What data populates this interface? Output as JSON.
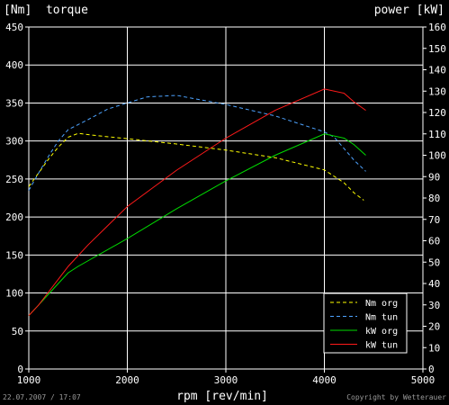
{
  "chart_data": {
    "type": "line",
    "left_axis_label": "[Nm]  torque",
    "right_axis_label": "power [kW]",
    "xlabel": "rpm [rev/min]",
    "xlim": [
      1000,
      5000
    ],
    "ylim_left": [
      0,
      450
    ],
    "ylim_right": [
      0,
      160
    ],
    "x_ticks": [
      1000,
      2000,
      3000,
      4000,
      5000
    ],
    "y_left_ticks": [
      0,
      50,
      100,
      150,
      200,
      250,
      300,
      350,
      400,
      450
    ],
    "y_right_ticks": [
      0,
      10,
      20,
      30,
      40,
      50,
      60,
      70,
      80,
      90,
      100,
      110,
      120,
      130,
      140,
      150,
      160
    ],
    "grid": true,
    "legend_position": "bottom-right",
    "series": [
      {
        "name": "Nm org",
        "axis": "left",
        "color": "#ffff00",
        "dashed": true,
        "points": [
          [
            1000,
            240
          ],
          [
            1100,
            258
          ],
          [
            1200,
            276
          ],
          [
            1300,
            292
          ],
          [
            1400,
            305
          ],
          [
            1500,
            310
          ],
          [
            1700,
            307
          ],
          [
            2000,
            303
          ],
          [
            2500,
            296
          ],
          [
            3000,
            288
          ],
          [
            3500,
            278
          ],
          [
            4000,
            262
          ],
          [
            4200,
            245
          ],
          [
            4300,
            232
          ],
          [
            4400,
            222
          ]
        ]
      },
      {
        "name": "Nm tun",
        "axis": "left",
        "color": "#4da3ff",
        "dashed": true,
        "points": [
          [
            1000,
            235
          ],
          [
            1100,
            258
          ],
          [
            1200,
            280
          ],
          [
            1300,
            300
          ],
          [
            1400,
            315
          ],
          [
            1600,
            328
          ],
          [
            1800,
            342
          ],
          [
            2000,
            350
          ],
          [
            2200,
            358
          ],
          [
            2500,
            360
          ],
          [
            3000,
            348
          ],
          [
            3500,
            333
          ],
          [
            4000,
            312
          ],
          [
            4100,
            305
          ],
          [
            4200,
            290
          ],
          [
            4300,
            275
          ],
          [
            4420,
            260
          ]
        ]
      },
      {
        "name": "kW org",
        "axis": "right",
        "color": "#00dd00",
        "dashed": false,
        "points": [
          [
            1000,
            25
          ],
          [
            1100,
            30
          ],
          [
            1200,
            35
          ],
          [
            1300,
            40
          ],
          [
            1400,
            45
          ],
          [
            1500,
            48
          ],
          [
            2000,
            61
          ],
          [
            2500,
            75
          ],
          [
            3000,
            88
          ],
          [
            3500,
            100
          ],
          [
            4000,
            110
          ],
          [
            4200,
            108
          ],
          [
            4300,
            105
          ],
          [
            4420,
            100
          ]
        ]
      },
      {
        "name": "kW tun",
        "axis": "right",
        "color": "#ff1a1a",
        "dashed": false,
        "points": [
          [
            1000,
            25
          ],
          [
            1100,
            30
          ],
          [
            1200,
            36
          ],
          [
            1300,
            42
          ],
          [
            1400,
            48
          ],
          [
            1600,
            58
          ],
          [
            1800,
            67
          ],
          [
            2000,
            76
          ],
          [
            2500,
            93
          ],
          [
            3000,
            108
          ],
          [
            3500,
            121
          ],
          [
            4000,
            131
          ],
          [
            4200,
            129
          ],
          [
            4300,
            125
          ],
          [
            4420,
            121
          ]
        ]
      }
    ]
  },
  "footer": {
    "timestamp": "22.07.2007 / 17:07",
    "copyright": "Copyright by Wetterauer"
  }
}
